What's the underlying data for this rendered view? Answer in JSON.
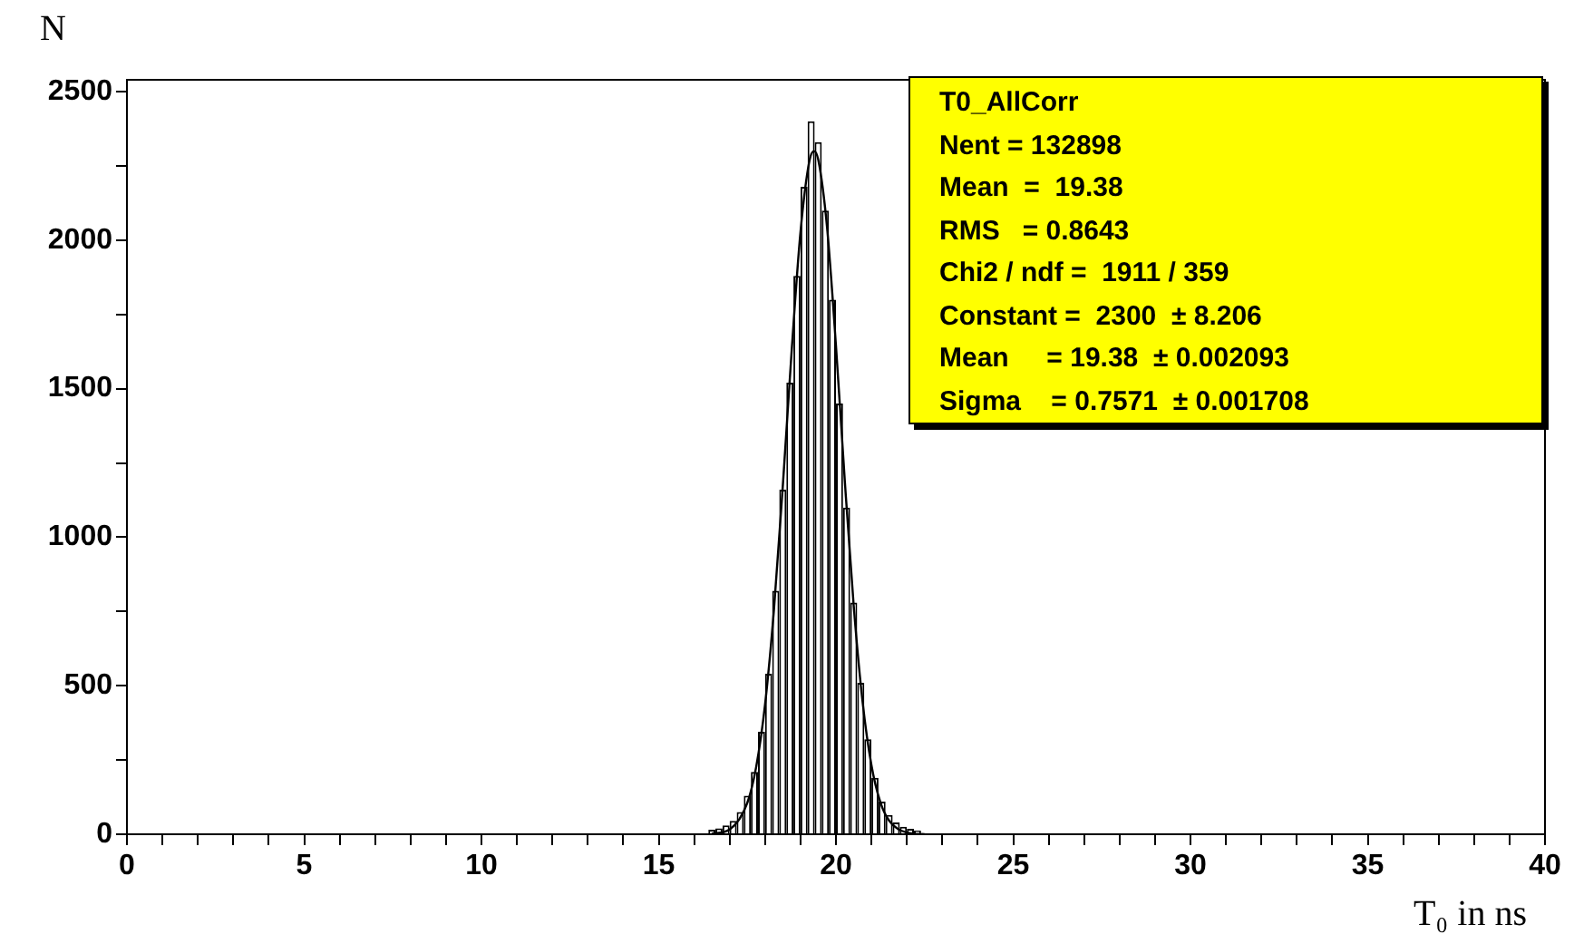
{
  "chart_data": {
    "type": "histogram",
    "xlabel": "T₀ in ns",
    "ylabel": "N",
    "bins": [
      16.4,
      16.6,
      16.8,
      17.0,
      17.2,
      17.4,
      17.6,
      17.8,
      18.0,
      18.2,
      18.4,
      18.6,
      18.8,
      19.0,
      19.2,
      19.4,
      19.6,
      19.8,
      20.0,
      20.2,
      20.4,
      20.6,
      20.8,
      21.0,
      21.2,
      21.4,
      21.6,
      21.8,
      22.0,
      22.2,
      22.4
    ],
    "values": [
      15,
      20,
      30,
      45,
      75,
      130,
      210,
      345,
      540,
      820,
      1160,
      1520,
      1880,
      2180,
      2400,
      2330,
      2100,
      1800,
      1450,
      1100,
      780,
      510,
      320,
      190,
      110,
      65,
      40,
      25,
      18,
      12
    ],
    "color": "#000000",
    "series": [
      {
        "type": "line",
        "color": "#000000",
        "x": [
          16.5,
          17,
          17.5,
          17.75,
          18,
          18.25,
          18.5,
          18.75,
          19,
          19.25,
          19.38,
          19.5,
          19.75,
          20,
          20.25,
          20.5,
          20.75,
          21,
          21.25,
          21.5,
          22,
          22.5
        ],
        "values": [
          2,
          16,
          106,
          227,
          437,
          755,
          1171,
          1627,
          2028,
          2266,
          2300,
          2271,
          2042,
          1645,
          1189,
          770,
          447,
          233,
          109,
          46,
          6,
          0
        ]
      }
    ],
    "xlim": [
      0,
      40
    ],
    "xticks": [
      0,
      {
        "value": 1,
        "label": null
      },
      {
        "value": 2,
        "label": null
      },
      {
        "value": 3,
        "label": null
      },
      {
        "value": 4,
        "label": null
      },
      5,
      {
        "value": 6,
        "label": null
      },
      {
        "value": 7,
        "label": null
      },
      {
        "value": 8,
        "label": null
      },
      {
        "value": 9,
        "label": null
      },
      10,
      {
        "value": 11,
        "label": null
      },
      {
        "value": 12,
        "label": null
      },
      {
        "value": 13,
        "label": null
      },
      {
        "value": 14,
        "label": null
      },
      15,
      {
        "value": 16,
        "label": null
      },
      {
        "value": 17,
        "label": null
      },
      {
        "value": 18,
        "label": null
      },
      {
        "value": 19,
        "label": null
      },
      20,
      {
        "value": 21,
        "label": null
      },
      {
        "value": 22,
        "label": null
      },
      {
        "value": 23,
        "label": null
      },
      {
        "value": 24,
        "label": null
      },
      25,
      {
        "value": 26,
        "label": null
      },
      {
        "value": 27,
        "label": null
      },
      {
        "value": 28,
        "label": null
      },
      {
        "value": 29,
        "label": null
      },
      30,
      {
        "value": 31,
        "label": null
      },
      {
        "value": 32,
        "label": null
      },
      {
        "value": 33,
        "label": null
      },
      {
        "value": 34,
        "label": null
      },
      35,
      {
        "value": 36,
        "label": null
      },
      {
        "value": 37,
        "label": null
      },
      {
        "value": 38,
        "label": null
      },
      {
        "value": 39,
        "label": null
      },
      40
    ],
    "ylim": [
      0,
      2540
    ],
    "yticks": [
      0,
      {
        "value": 250,
        "label": null
      },
      500,
      {
        "value": 750,
        "label": null
      },
      1000,
      {
        "value": 1250,
        "label": null
      },
      1500,
      {
        "value": 1750,
        "label": null
      },
      2000,
      {
        "value": 2250,
        "label": null
      },
      2500
    ],
    "annotations": [
      "T0_AllCorr",
      "Nent = 132898",
      "Mean  =  19.38",
      "RMS   = 0.8643",
      "Chi2 / ndf =  1911 / 359",
      "Constant =  2300  ± 8.206",
      "Mean     = 19.38  ± 0.002093",
      "Sigma    = 0.7571  ± 0.001708"
    ],
    "legend": false
  }
}
